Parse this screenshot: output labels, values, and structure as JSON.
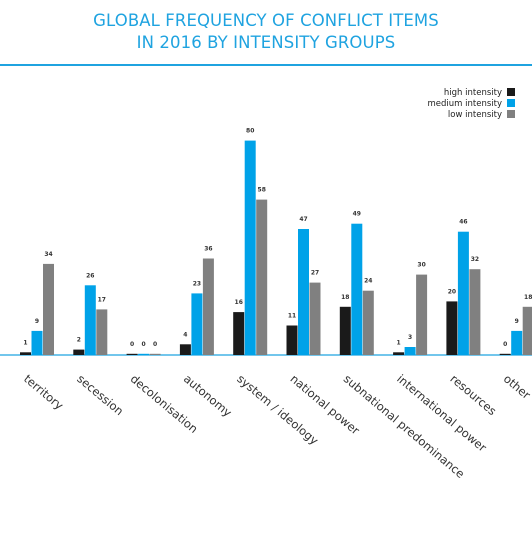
{
  "title": {
    "line1": "GLOBAL FREQUENCY OF CONFLICT ITEMS",
    "line2": "IN 2016 BY INTENSITY GROUPS"
  },
  "colors": {
    "accent": "#1fa3e0",
    "high": "#1a1a1a",
    "medium": "#00a2e8",
    "low": "#808080"
  },
  "chart_data": {
    "type": "bar",
    "title": "GLOBAL FREQUENCY OF CONFLICT ITEMS IN 2016 BY INTENSITY GROUPS",
    "xlabel": "",
    "ylabel": "",
    "ylim": [
      0,
      90
    ],
    "grid": false,
    "legend_position": "top-right",
    "categories": [
      "territory",
      "secession",
      "decolonisation",
      "autonomy",
      "system / ideology",
      "national power",
      "subnational predominance",
      "international power",
      "resources",
      "other"
    ],
    "series": [
      {
        "name": "high intensity",
        "color": "#1a1a1a",
        "values": [
          1,
          2,
          0,
          4,
          16,
          11,
          18,
          1,
          20,
          0
        ]
      },
      {
        "name": "medium intensity",
        "color": "#00a2e8",
        "values": [
          9,
          26,
          0,
          23,
          80,
          47,
          49,
          3,
          46,
          9
        ]
      },
      {
        "name": "low intensity",
        "color": "#808080",
        "values": [
          34,
          17,
          0,
          36,
          58,
          27,
          24,
          30,
          32,
          18
        ]
      }
    ]
  }
}
